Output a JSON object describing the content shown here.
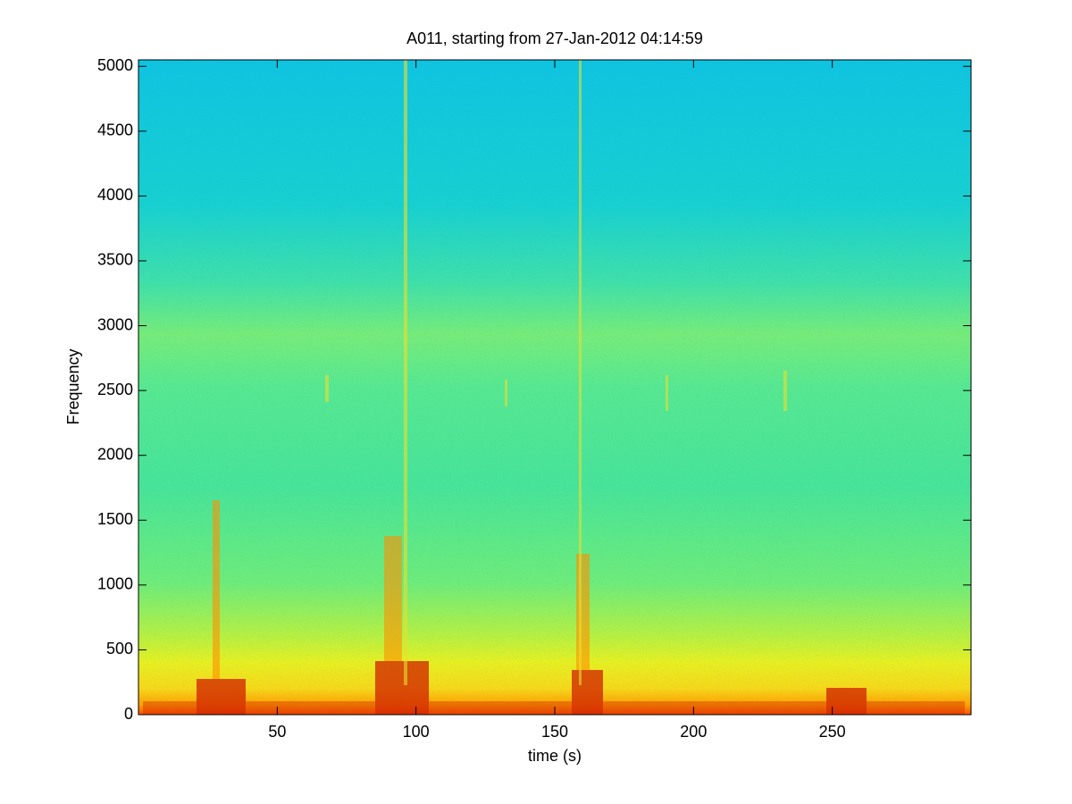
{
  "chart_data": {
    "type": "spectrogram",
    "title": "A011, starting from 27-Jan-2012 04:14:59",
    "x_label": "time (s)",
    "y_label": "Frequency",
    "xlim": [
      0,
      300
    ],
    "ylim": [
      0,
      5050
    ],
    "xticks": [
      50,
      100,
      150,
      200,
      250
    ],
    "yticks": [
      0,
      500,
      1000,
      1500,
      2000,
      2500,
      3000,
      3500,
      4000,
      4500,
      5000
    ],
    "colormap": "jet"
  }
}
